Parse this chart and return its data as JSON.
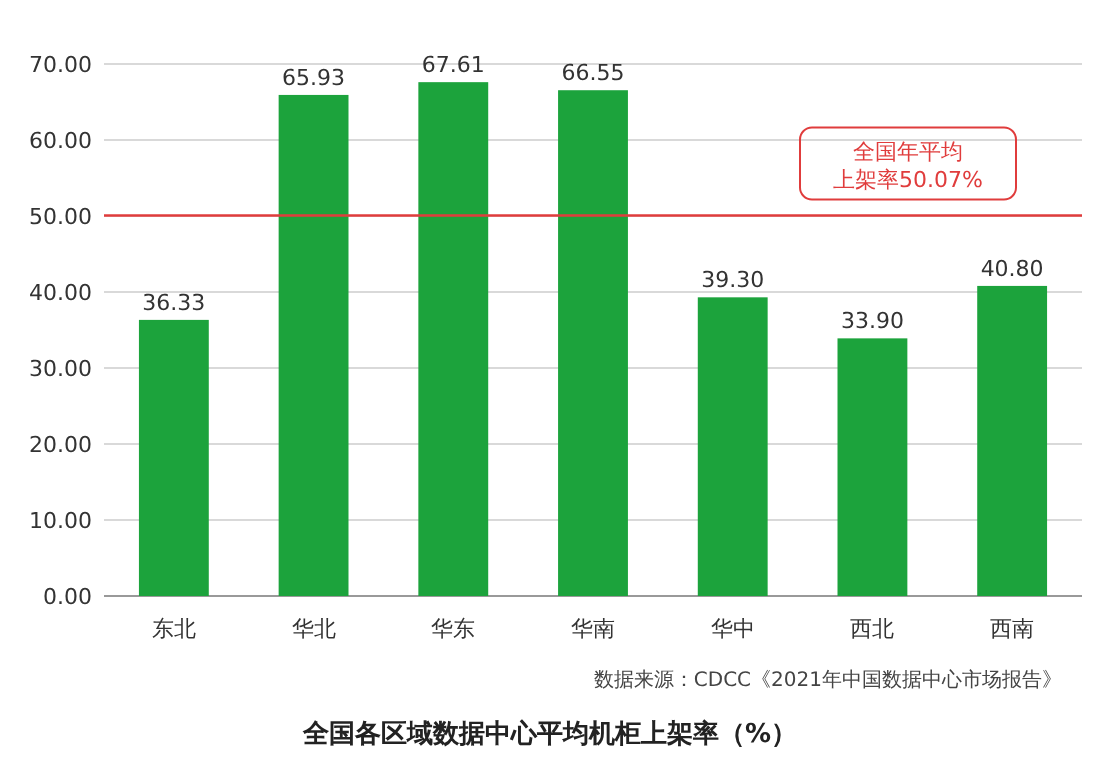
{
  "chart_data": {
    "type": "bar",
    "title": "全国各区域数据中心平均机柜上架率（%）",
    "categories": [
      "东北",
      "华北",
      "华东",
      "华南",
      "华中",
      "西北",
      "西南"
    ],
    "values": [
      36.33,
      65.93,
      67.61,
      66.55,
      39.3,
      33.9,
      40.8
    ],
    "value_labels": [
      "36.33",
      "65.93",
      "67.61",
      "66.55",
      "39.30",
      "33.90",
      "40.80"
    ],
    "color": "#1ca33c",
    "ylim": [
      0,
      70
    ],
    "yticks": [
      {
        "value": 0,
        "label": "0.00"
      },
      {
        "value": 10,
        "label": "10.00"
      },
      {
        "value": 20,
        "label": "20.00"
      },
      {
        "value": 30,
        "label": "30.00"
      },
      {
        "value": 40,
        "label": "40.00"
      },
      {
        "value": 50,
        "label": "50.00"
      },
      {
        "value": 60,
        "label": "60.00"
      },
      {
        "value": 70,
        "label": "70.00"
      }
    ],
    "grid": "y",
    "ref_lines": [
      {
        "axis": "y",
        "value": 50.07,
        "label": "全国年平均上架率50.07%",
        "color": "#e03c3c"
      }
    ],
    "annotations": [
      "数据来源：CDCC《2021年中国数据中心市场报告》"
    ]
  }
}
